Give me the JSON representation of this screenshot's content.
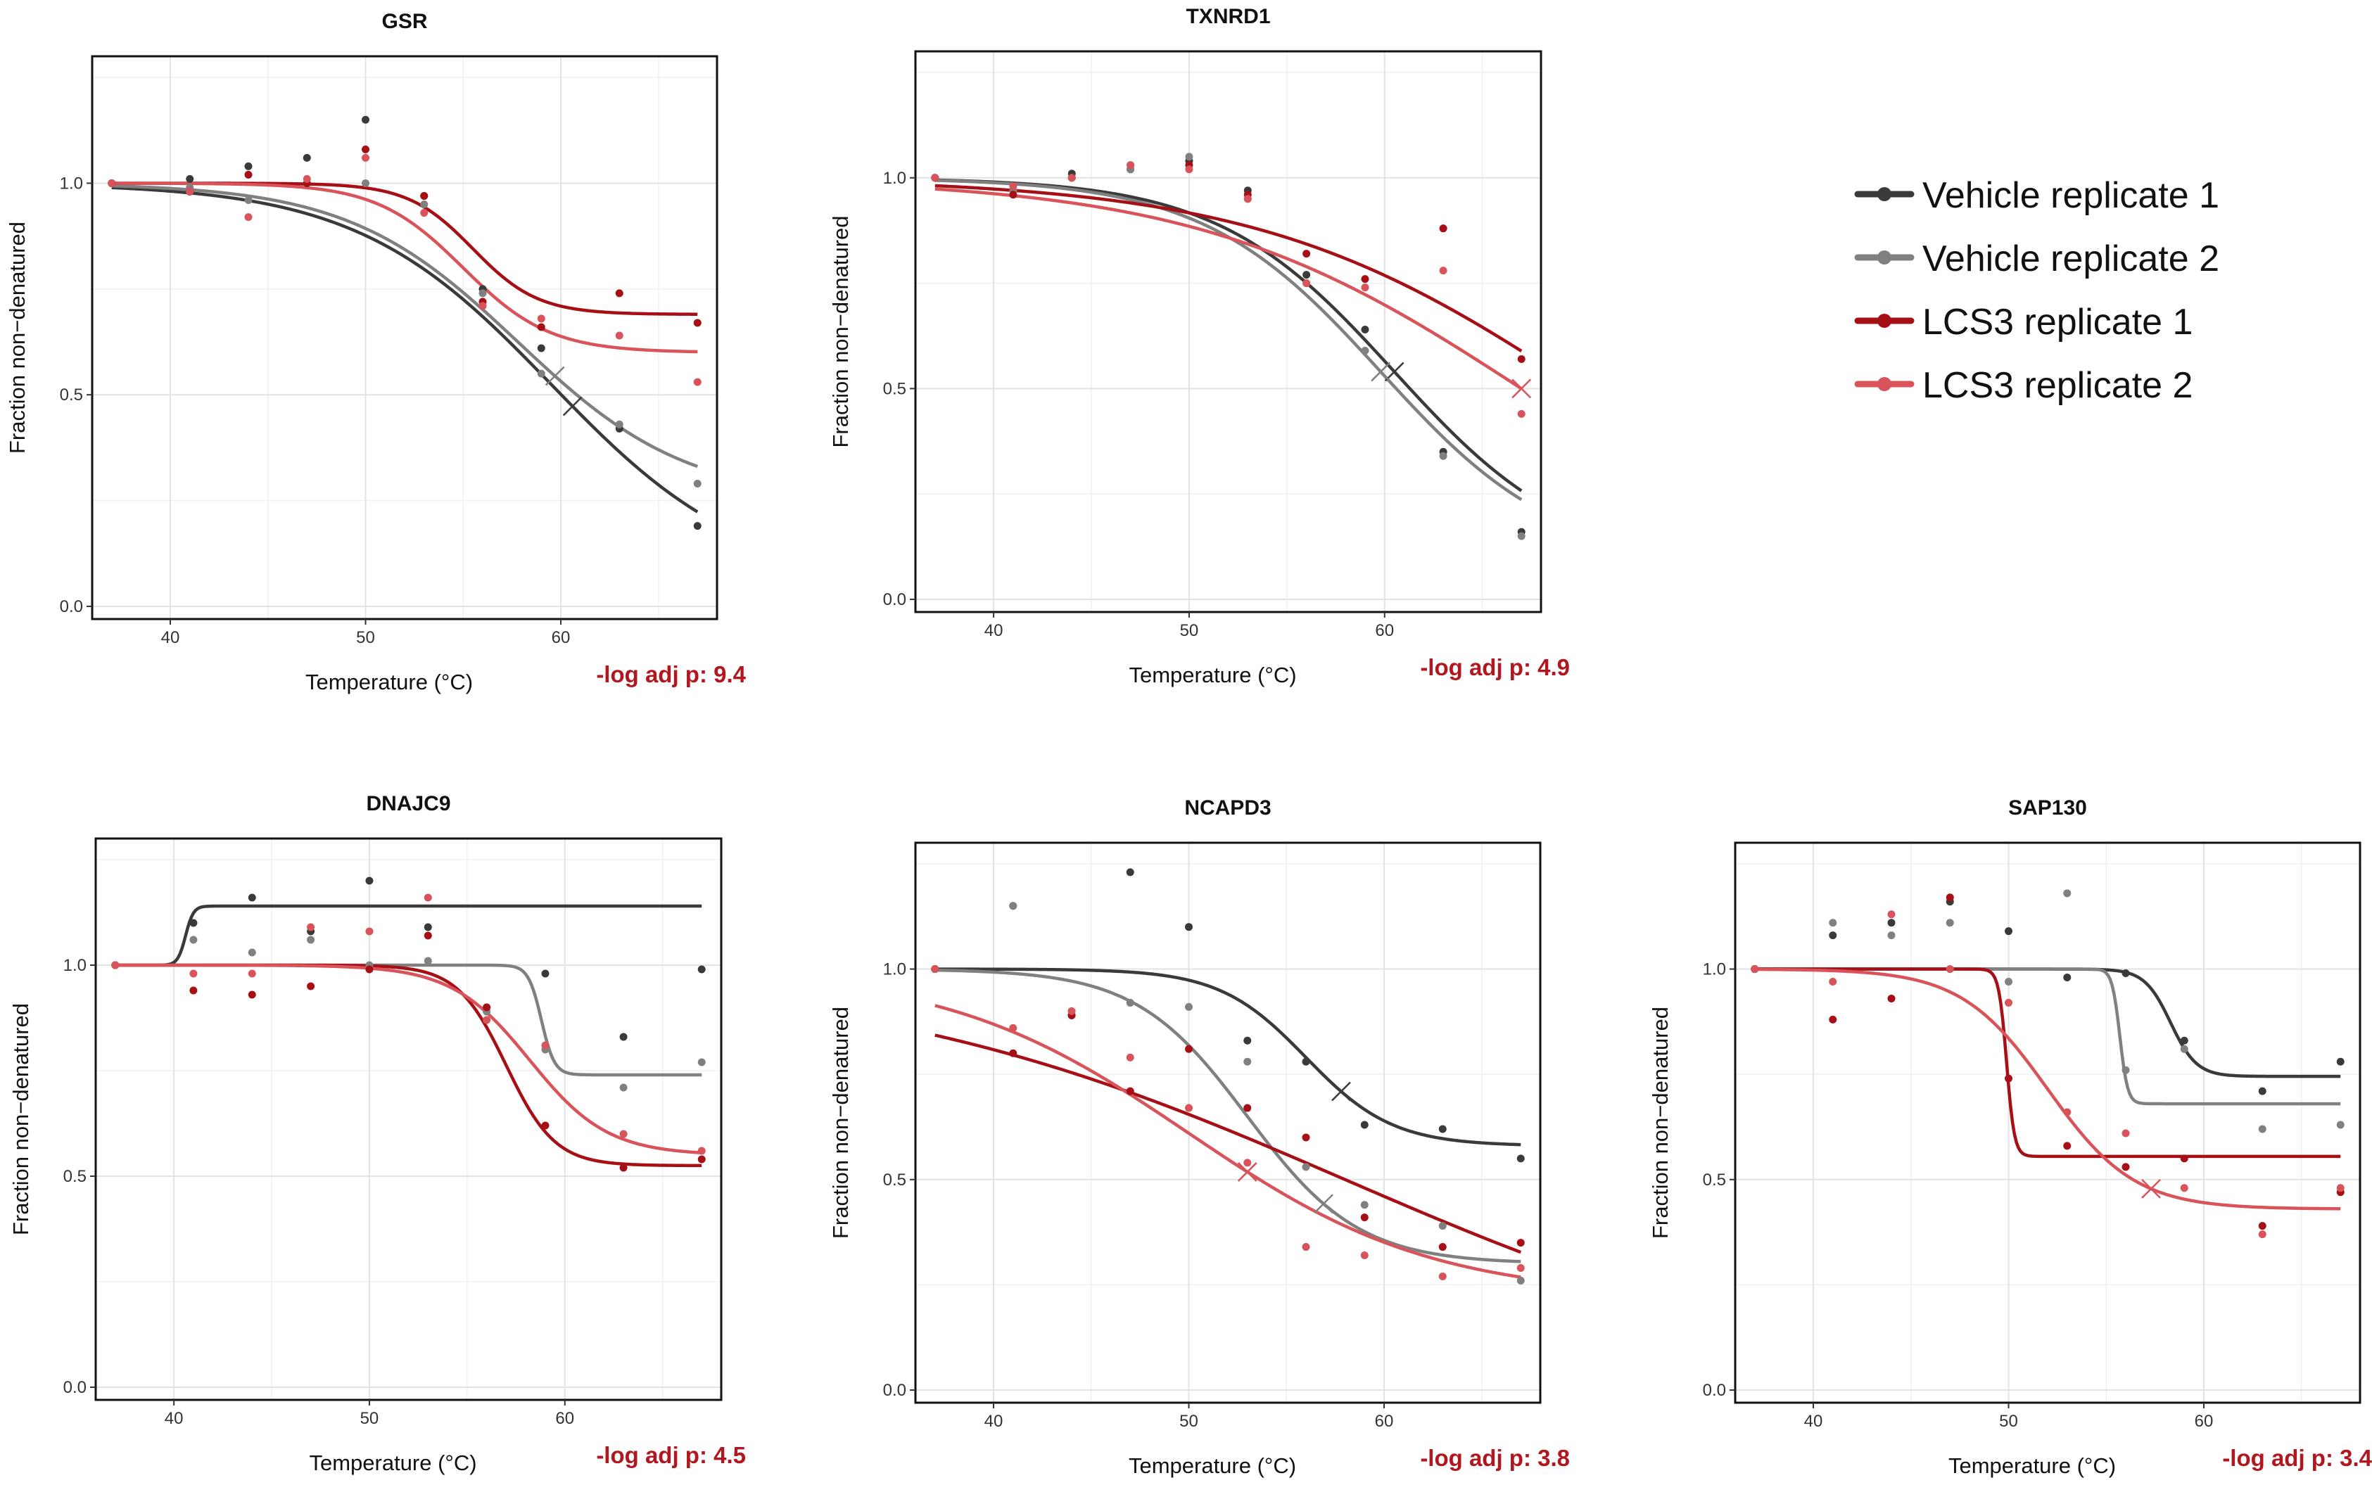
{
  "series_names": [
    "Vehicle replicate 1",
    "Vehicle replicate 2",
    "LCS3 replicate 1",
    "LCS3 replicate 2"
  ],
  "series_colors": [
    "#3a3a3a",
    "#808080",
    "#a50f15",
    "#d9535a"
  ],
  "pvalue_color": "#b0171f",
  "legend": {
    "items": [
      "Vehicle replicate 1",
      "Vehicle replicate 2",
      "LCS3 replicate 1",
      "LCS3 replicate 2"
    ]
  },
  "chart_data": [
    {
      "type": "scatter",
      "title": "GSR",
      "xlabel": "Temperature (°C)",
      "ylabel": "Fraction non−denatured",
      "pvalue_label": "-log adj p: 9.4",
      "xlim": [
        36,
        68
      ],
      "ylim": [
        -0.03,
        1.3
      ],
      "xticks": [
        40,
        50,
        60
      ],
      "yticks": [
        0.0,
        0.5,
        1.0
      ],
      "yticklabels": [
        "0.0",
        "0.5",
        "1.0"
      ],
      "x": [
        37,
        41,
        44,
        47,
        50,
        53,
        56,
        59,
        63,
        67
      ],
      "series": [
        {
          "name": "Vehicle replicate 1",
          "points": [
            1.0,
            1.01,
            1.04,
            1.06,
            1.15,
            0.97,
            0.75,
            0.61,
            0.42,
            0.19
          ],
          "curve": {
            "bottom": 0.05,
            "tm": 59.5,
            "slope": 0.2
          },
          "tm_label_x": 60.6
        },
        {
          "name": "Vehicle replicate 2",
          "points": [
            1.0,
            0.99,
            0.96,
            1.0,
            1.0,
            0.95,
            0.74,
            0.55,
            0.43,
            0.29
          ],
          "curve": {
            "bottom": 0.25,
            "tm": 57.8,
            "slope": 0.23
          },
          "tm_label_x": 59.7
        },
        {
          "name": "LCS3 replicate 1",
          "points": [
            1.0,
            0.98,
            1.02,
            1.0,
            1.08,
            0.97,
            0.72,
            0.66,
            0.74,
            0.67
          ],
          "curve": {
            "bottom": 0.69,
            "tm": 55.5,
            "slope": 0.6
          },
          "tm_label_x": null
        },
        {
          "name": "LCS3 replicate 2",
          "points": [
            1.0,
            0.98,
            0.92,
            1.01,
            1.06,
            0.93,
            0.71,
            0.68,
            0.64,
            0.53
          ],
          "curve": {
            "bottom": 0.6,
            "tm": 55.0,
            "slope": 0.45
          },
          "tm_label_x": null
        }
      ]
    },
    {
      "type": "scatter",
      "title": "TXNRD1",
      "xlabel": "Temperature (°C)",
      "ylabel": "Fraction non−denatured",
      "pvalue_label": "-log adj p: 4.9",
      "xlim": [
        36,
        68
      ],
      "ylim": [
        -0.03,
        1.3
      ],
      "xticks": [
        40,
        50,
        60
      ],
      "yticks": [
        0.0,
        0.5,
        1.0
      ],
      "yticklabels": [
        "0.0",
        "0.5",
        "1.0"
      ],
      "x": [
        37,
        41,
        44,
        47,
        50,
        53,
        56,
        59,
        63,
        67
      ],
      "series": [
        {
          "name": "Vehicle replicate 1",
          "points": [
            1.0,
            0.97,
            1.01,
            1.02,
            1.04,
            0.97,
            0.77,
            0.64,
            0.35,
            0.16
          ],
          "curve": {
            "bottom": 0.08,
            "tm": 60.5,
            "slope": 0.22
          },
          "tm_label_x": 60.5
        },
        {
          "name": "Vehicle replicate 2",
          "points": [
            1.0,
            0.97,
            1.0,
            1.02,
            1.05,
            0.95,
            0.75,
            0.59,
            0.34,
            0.15
          ],
          "curve": {
            "bottom": 0.08,
            "tm": 59.8,
            "slope": 0.22
          },
          "tm_label_x": 59.8
        },
        {
          "name": "LCS3 replicate 1",
          "points": [
            1.0,
            0.96,
            1.0,
            1.03,
            1.03,
            0.96,
            0.82,
            0.76,
            0.88,
            0.57
          ],
          "curve": {
            "bottom": 0.0,
            "tm": 70.0,
            "slope": 0.12
          },
          "tm_label_x": null
        },
        {
          "name": "LCS3 replicate 2",
          "points": [
            1.0,
            0.98,
            1.0,
            1.03,
            1.02,
            0.95,
            0.75,
            0.74,
            0.78,
            0.44
          ],
          "curve": {
            "bottom": 0.0,
            "tm": 67.0,
            "slope": 0.12
          },
          "tm_label_x": 67.0
        }
      ]
    },
    {
      "type": "scatter",
      "title": "DNAJC9",
      "xlabel": "Temperature (°C)",
      "ylabel": "Fraction non−denatured",
      "pvalue_label": "-log adj p: 4.5",
      "xlim": [
        36,
        68
      ],
      "ylim": [
        -0.03,
        1.3
      ],
      "xticks": [
        40,
        50,
        60
      ],
      "yticks": [
        0.0,
        0.5,
        1.0
      ],
      "yticklabels": [
        "0.0",
        "0.5",
        "1.0"
      ],
      "x": [
        37,
        41,
        44,
        47,
        50,
        53,
        56,
        59,
        63,
        67
      ],
      "series": [
        {
          "name": "Vehicle replicate 1",
          "points": [
            1.0,
            1.1,
            1.16,
            1.08,
            1.2,
            1.09,
            0.9,
            0.98,
            0.83,
            0.99
          ],
          "curve": {
            "bottom": 1.0,
            "top": 1.14,
            "rising": true,
            "tm": 40.6,
            "slope": 5.0
          },
          "tm_label_x": null
        },
        {
          "name": "Vehicle replicate 2",
          "points": [
            1.0,
            1.06,
            1.03,
            1.06,
            1.0,
            1.01,
            0.89,
            0.8,
            0.71,
            0.77
          ],
          "curve": {
            "bottom": 0.74,
            "tm": 58.8,
            "slope": 3.0
          },
          "tm_label_x": null
        },
        {
          "name": "LCS3 replicate 1",
          "points": [
            1.0,
            0.94,
            0.93,
            0.95,
            0.99,
            1.07,
            0.9,
            0.62,
            0.52,
            0.54
          ],
          "curve": {
            "bottom": 0.525,
            "tm": 57.0,
            "slope": 0.8
          },
          "tm_label_x": null
        },
        {
          "name": "LCS3 replicate 2",
          "points": [
            1.0,
            0.98,
            0.98,
            1.09,
            1.08,
            1.16,
            0.87,
            0.81,
            0.6,
            0.56
          ],
          "curve": {
            "bottom": 0.55,
            "tm": 58.2,
            "slope": 0.5
          },
          "tm_label_x": null
        }
      ]
    },
    {
      "type": "scatter",
      "title": "NCAPD3",
      "xlabel": "Temperature (°C)",
      "ylabel": "Fraction non−denatured",
      "pvalue_label": "-log adj p: 3.8",
      "xlim": [
        36,
        68
      ],
      "ylim": [
        -0.03,
        1.3
      ],
      "xticks": [
        40,
        50,
        60
      ],
      "yticks": [
        0.0,
        0.5,
        1.0
      ],
      "yticklabels": [
        "0.0",
        "0.5",
        "1.0"
      ],
      "x": [
        37,
        41,
        44,
        47,
        50,
        53,
        56,
        59,
        63,
        67
      ],
      "series": [
        {
          "name": "Vehicle replicate 1",
          "points": [
            1.0,
            1.15,
            0.89,
            1.23,
            1.1,
            0.83,
            0.78,
            0.63,
            0.62,
            0.55
          ],
          "curve": {
            "bottom": 0.58,
            "tm": 56.0,
            "slope": 0.45
          },
          "tm_label_x": 57.8
        },
        {
          "name": "Vehicle replicate 2",
          "points": [
            1.0,
            1.15,
            0.89,
            0.92,
            0.91,
            0.78,
            0.53,
            0.44,
            0.39,
            0.26
          ],
          "curve": {
            "bottom": 0.3,
            "tm": 53.0,
            "slope": 0.35
          },
          "tm_label_x": 56.9
        },
        {
          "name": "LCS3 replicate 1",
          "points": [
            1.0,
            0.8,
            0.89,
            0.71,
            0.81,
            0.67,
            0.6,
            0.41,
            0.34,
            0.35
          ],
          "curve": {
            "bottom": 0.0,
            "tm": 58.0,
            "slope": 0.08
          },
          "tm_label_x": null
        },
        {
          "name": "LCS3 replicate 2",
          "points": [
            1.0,
            0.86,
            0.9,
            0.79,
            0.67,
            0.54,
            0.34,
            0.32,
            0.27,
            0.29
          ],
          "curve": {
            "bottom": 0.22,
            "tm": 50.0,
            "slope": 0.16
          },
          "tm_label_x": 53.0
        }
      ]
    },
    {
      "type": "scatter",
      "title": "SAP130",
      "xlabel": "Temperature (°C)",
      "ylabel": "Fraction non−denatured",
      "pvalue_label": "-log adj p: 3.4",
      "xlim": [
        36,
        68
      ],
      "ylim": [
        -0.03,
        1.3
      ],
      "xticks": [
        40,
        50,
        60
      ],
      "yticks": [
        0.0,
        0.5,
        1.0
      ],
      "yticklabels": [
        "0.0",
        "0.5",
        "1.0"
      ],
      "x": [
        37,
        41,
        44,
        47,
        50,
        53,
        56,
        59,
        63,
        67
      ],
      "series": [
        {
          "name": "Vehicle replicate 1",
          "points": [
            1.0,
            1.08,
            1.11,
            1.16,
            1.09,
            0.98,
            0.99,
            0.83,
            0.71,
            0.78
          ],
          "curve": {
            "bottom": 0.745,
            "tm": 58.3,
            "slope": 1.5
          },
          "tm_label_x": null
        },
        {
          "name": "Vehicle replicate 2",
          "points": [
            1.0,
            1.11,
            1.08,
            1.11,
            0.97,
            1.18,
            0.76,
            0.81,
            0.62,
            0.63
          ],
          "curve": {
            "bottom": 0.68,
            "tm": 55.7,
            "slope": 5.0
          },
          "tm_label_x": null
        },
        {
          "name": "LCS3 replicate 1",
          "points": [
            1.0,
            0.88,
            0.93,
            1.17,
            0.74,
            0.58,
            0.53,
            0.55,
            0.39,
            0.47
          ],
          "curve": {
            "bottom": 0.555,
            "tm": 49.9,
            "slope": 5.0
          },
          "tm_label_x": null
        },
        {
          "name": "LCS3 replicate 2",
          "points": [
            1.0,
            0.97,
            1.13,
            1.0,
            0.92,
            0.66,
            0.61,
            0.48,
            0.37,
            0.48
          ],
          "curve": {
            "bottom": 0.43,
            "tm": 52.0,
            "slope": 0.45
          },
          "tm_label_x": 57.3
        }
      ]
    }
  ]
}
